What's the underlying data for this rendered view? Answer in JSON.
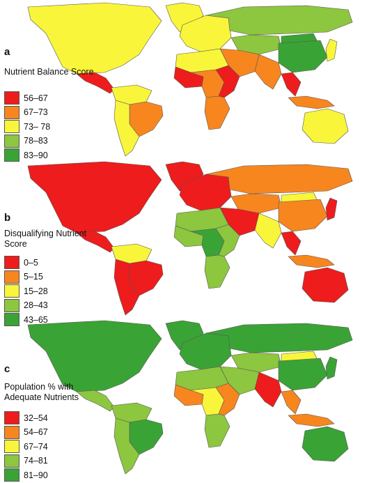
{
  "colors": {
    "red": "#ee1c1c",
    "orange": "#f7861f",
    "yellow": "#f9f53a",
    "lightgreen": "#8dc63f",
    "green": "#3aa335",
    "border": "#555555"
  },
  "panels": [
    {
      "letter": "a",
      "title": "Nutrient Balance Score",
      "legend": [
        {
          "label": "56–67",
          "color": "#ee1c1c"
        },
        {
          "label": "67–73",
          "color": "#f7861f"
        },
        {
          "label": "73– 78",
          "color": "#f9f53a"
        },
        {
          "label": "78–83",
          "color": "#8dc63f"
        },
        {
          "label": "83–90",
          "color": "#3aa335"
        }
      ],
      "regions": {
        "north_america": "yellow",
        "greenland": "yellow",
        "central_america": "red",
        "south_america_north": "yellow",
        "south_america_east": "orange",
        "south_america_south": "yellow",
        "europe": "yellow",
        "russia": "lightgreen",
        "central_asia": "lightgreen",
        "china": "green",
        "mongolia": "green",
        "middle_east": "orange",
        "north_africa": "yellow",
        "west_africa": "red",
        "central_africa": "orange",
        "east_africa": "red",
        "southern_africa": "orange",
        "india": "orange",
        "southeast_asia": "red",
        "indonesia": "orange",
        "australia": "yellow",
        "japan": "yellow"
      }
    },
    {
      "letter": "b",
      "title": "Disqualifying Nutrient Score",
      "legend": [
        {
          "label": "0–5",
          "color": "#ee1c1c"
        },
        {
          "label": "5–15",
          "color": "#f7861f"
        },
        {
          "label": "15–28",
          "color": "#f9f53a"
        },
        {
          "label": "28–43",
          "color": "#8dc63f"
        },
        {
          "label": "43–65",
          "color": "#3aa335"
        }
      ],
      "regions": {
        "north_america": "red",
        "greenland": "red",
        "central_america": "red",
        "south_america_north": "yellow",
        "south_america_east": "red",
        "south_america_south": "red",
        "europe": "red",
        "russia": "orange",
        "central_asia": "orange",
        "china": "orange",
        "mongolia": "yellow",
        "middle_east": "red",
        "north_africa": "lightgreen",
        "west_africa": "lightgreen",
        "central_africa": "green",
        "east_africa": "lightgreen",
        "southern_africa": "lightgreen",
        "india": "yellow",
        "southeast_asia": "red",
        "indonesia": "orange",
        "australia": "red",
        "japan": "red"
      }
    },
    {
      "letter": "c",
      "title": "Population % with Adequate Nutrients",
      "legend": [
        {
          "label": "32–54",
          "color": "#ee1c1c"
        },
        {
          "label": "54–67",
          "color": "#f7861f"
        },
        {
          "label": "67–74",
          "color": "#f9f53a"
        },
        {
          "label": "74–81",
          "color": "#8dc63f"
        },
        {
          "label": "81–90",
          "color": "#3aa335"
        }
      ],
      "regions": {
        "north_america": "green",
        "greenland": "green",
        "central_america": "lightgreen",
        "south_america_north": "lightgreen",
        "south_america_east": "green",
        "south_america_south": "lightgreen",
        "europe": "green",
        "russia": "green",
        "central_asia": "lightgreen",
        "china": "green",
        "mongolia": "yellow",
        "middle_east": "lightgreen",
        "north_africa": "lightgreen",
        "west_africa": "orange",
        "central_africa": "yellow",
        "east_africa": "orange",
        "southern_africa": "lightgreen",
        "india": "red",
        "southeast_asia": "orange",
        "indonesia": "orange",
        "australia": "green",
        "japan": "green"
      }
    }
  ]
}
